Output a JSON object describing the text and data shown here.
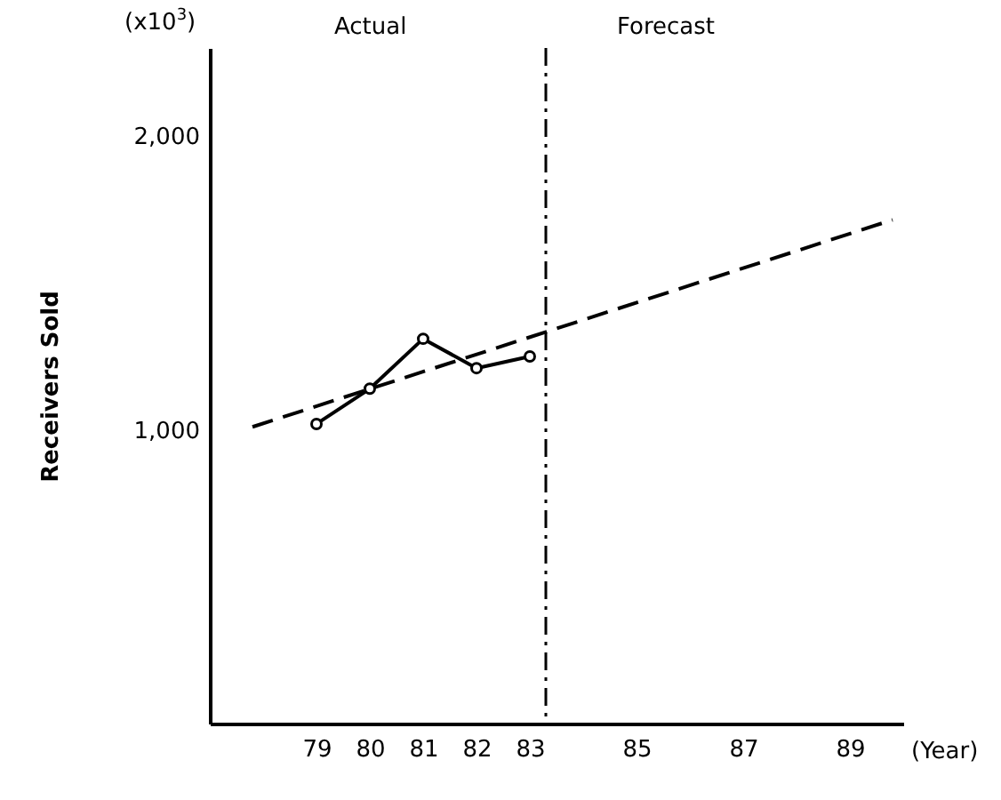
{
  "chart_data": {
    "type": "line",
    "xlabel": "(Year)",
    "ylabel": "Receivers Sold",
    "annotations": [
      "(x10$^{3}$)",
      "Actual",
      "Forecast"
    ],
    "x": [
      79,
      80,
      81,
      82,
      83
    ],
    "series": [
      {
        "color": "#000000",
        "marker": "circle",
        "line_style": "solid",
        "values": [
          1020,
          1140,
          1310,
          1210,
          1250
        ]
      },
      {
        "type": "line",
        "color": "#000000",
        "marker": "none",
        "line_style": "dashed",
        "x": [
          77.8,
          89.8
        ],
        "values": [
          1010,
          1715
        ]
      }
    ],
    "ref_lines": [
      {
        "axis": "x",
        "value": 83.3,
        "line_style": "dashed",
        "color": "#000000"
      }
    ],
    "xlim": [
      77,
      90
    ],
    "xticks": [
      79,
      80,
      81,
      82,
      83,
      85,
      87,
      89
    ],
    "ylim": [
      0,
      2300
    ],
    "yticks": [
      {
        "value": 1000,
        "label": "1,000"
      },
      {
        "value": 2000,
        "label": "2,000"
      }
    ],
    "grid": false
  }
}
